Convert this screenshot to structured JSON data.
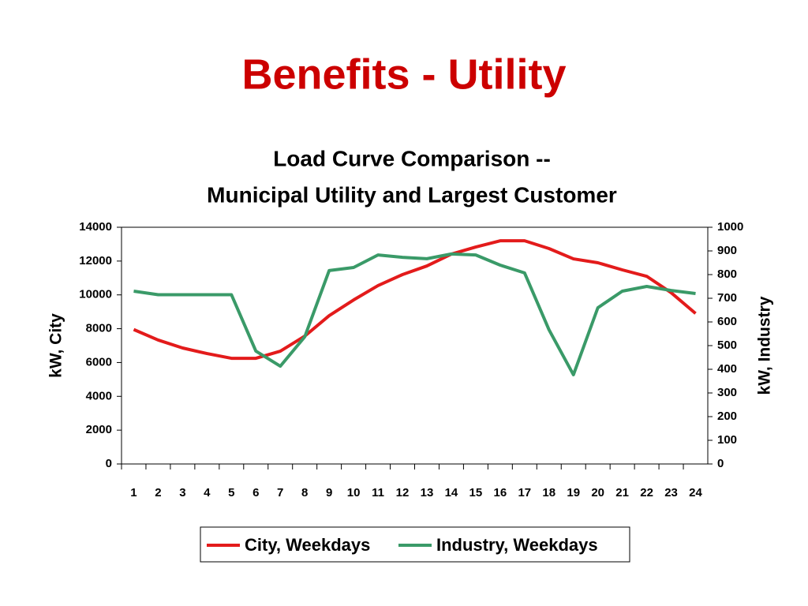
{
  "slide_title": "Benefits - Utility",
  "chart_data": {
    "type": "line",
    "title": [
      "Load Curve Comparison --",
      "Municipal Utility and Largest Customer"
    ],
    "ylabel": "kW, City",
    "y2label": "kW, Industry",
    "categories": [
      "1",
      "2",
      "3",
      "4",
      "5",
      "6",
      "7",
      "8",
      "9",
      "10",
      "11",
      "12",
      "13",
      "14",
      "15",
      "16",
      "17",
      "18",
      "19",
      "20",
      "21",
      "22",
      "23",
      "24"
    ],
    "series": [
      {
        "name": "City, Weekdays",
        "color": "#e31b1b",
        "axis": "y",
        "values": [
          7950,
          7330,
          6860,
          6530,
          6250,
          6250,
          6670,
          7560,
          8770,
          9700,
          10550,
          11200,
          11710,
          12410,
          12830,
          13200,
          13200,
          12740,
          12130,
          11900,
          11480,
          11100,
          10130,
          8900
        ]
      },
      {
        "name": "Industry, Weekdays",
        "color": "#3a9a68",
        "axis": "y2",
        "values": [
          730,
          715,
          715,
          715,
          715,
          477,
          413,
          537,
          817,
          830,
          883,
          873,
          867,
          887,
          883,
          840,
          807,
          567,
          377,
          660,
          730,
          750,
          733,
          720
        ]
      }
    ],
    "ylim": [
      0,
      14000
    ],
    "yticks": [
      0,
      2000,
      4000,
      6000,
      8000,
      10000,
      12000,
      14000
    ],
    "y2lim": [
      0,
      1000
    ],
    "y2ticks": [
      0,
      100,
      200,
      300,
      400,
      500,
      600,
      700,
      800,
      900,
      1000
    ],
    "legend": "bottom"
  }
}
